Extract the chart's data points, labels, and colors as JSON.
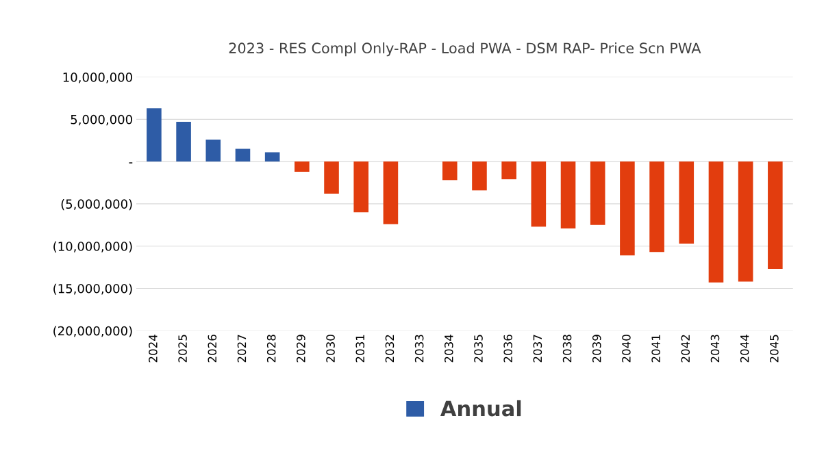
{
  "chart_data": {
    "type": "bar",
    "title": "2023 - RES Compl Only-RAP - Load PWA - DSM RAP- Price Scn PWA",
    "categories": [
      "2024",
      "2025",
      "2026",
      "2027",
      "2028",
      "2029",
      "2030",
      "2031",
      "2032",
      "2033",
      "2034",
      "2035",
      "2036",
      "2037",
      "2038",
      "2039",
      "2040",
      "2041",
      "2042",
      "2043",
      "2044",
      "2045"
    ],
    "series": [
      {
        "name": "Annual",
        "color": "#2e5ca6",
        "values": [
          6300000,
          4700000,
          2600000,
          1500000,
          1100000,
          -1200000,
          -3800000,
          -6000000,
          -7400000,
          0,
          -2200000,
          -3400000,
          -2100000,
          -7700000,
          -7900000,
          -7500000,
          -11100000,
          -10700000,
          -9700000,
          -14300000,
          -14200000,
          -12700000
        ],
        "colors": [
          "#2e5ca6",
          "#2e5ca6",
          "#2e5ca6",
          "#2e5ca6",
          "#2e5ca6",
          "#e23d0e",
          "#e23d0e",
          "#e23d0e",
          "#e23d0e",
          "#e23d0e",
          "#e23d0e",
          "#e23d0e",
          "#e23d0e",
          "#e23d0e",
          "#e23d0e",
          "#e23d0e",
          "#e23d0e",
          "#e23d0e",
          "#e23d0e",
          "#e23d0e",
          "#e23d0e",
          "#e23d0e"
        ]
      }
    ],
    "ylim": [
      -20000000,
      10000000
    ],
    "yticks": [
      {
        "value": 10000000,
        "label": "10,000,000"
      },
      {
        "value": 5000000,
        "label": "5,000,000"
      },
      {
        "value": 0,
        "label": "-"
      },
      {
        "value": -5000000,
        "label": "(5,000,000)"
      },
      {
        "value": -10000000,
        "label": "(10,000,000)"
      },
      {
        "value": -15000000,
        "label": "(15,000,000)"
      },
      {
        "value": -20000000,
        "label": "(20,000,000)"
      }
    ],
    "grid": "y",
    "legend": "bottom"
  }
}
